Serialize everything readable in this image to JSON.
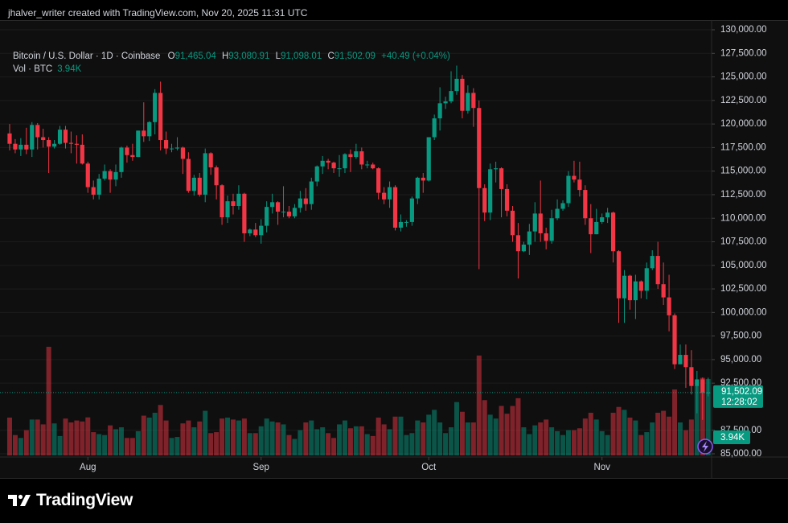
{
  "header": {
    "credit": "jhalver_writer created with TradingView.com, Nov 20, 2025 11:31 UTC"
  },
  "footer": {
    "brand": "TradingView"
  },
  "chart_data": {
    "type": "candlestick",
    "title": "Bitcoin / U.S. Dollar · 1D · Coinbase",
    "ohlc_legend": [
      {
        "prefix": "O",
        "label": "91,465.04"
      },
      {
        "prefix": "H",
        "label": "93,080.91"
      },
      {
        "prefix": "L",
        "label": "91,098.01"
      },
      {
        "prefix": "C",
        "label": "91,502.09"
      }
    ],
    "change": "+40.49 (+0.04%)",
    "volume_legend": {
      "label": "Vol · BTC",
      "value": "3.94K"
    },
    "price_tag": {
      "price": "91,502.09",
      "countdown": "12:28:02"
    },
    "volume_tag": "3.94K",
    "up_color": "#089981",
    "down_color": "#f23645",
    "grid": true,
    "ylim": [
      84830,
      130940
    ],
    "yticks": [
      {
        "value": 85000,
        "label": "85,000.00"
      },
      {
        "value": 87500,
        "label": "87,500.00"
      },
      {
        "value": 92500,
        "label": "92,500.00"
      },
      {
        "value": 95000,
        "label": "95,000.00"
      },
      {
        "value": 97500,
        "label": "97,500.00"
      },
      {
        "value": 100000,
        "label": "100,000.00"
      },
      {
        "value": 102500,
        "label": "102,500.00"
      },
      {
        "value": 105000,
        "label": "105,000.00"
      },
      {
        "value": 107500,
        "label": "107,500.00"
      },
      {
        "value": 110000,
        "label": "110,000.00"
      },
      {
        "value": 112500,
        "label": "112,500.00"
      },
      {
        "value": 115000,
        "label": "115,000.00"
      },
      {
        "value": 117500,
        "label": "117,500.00"
      },
      {
        "value": 120000,
        "label": "120,000.00"
      },
      {
        "value": 122500,
        "label": "122,500.00"
      },
      {
        "value": 125000,
        "label": "125,000.00"
      },
      {
        "value": 127500,
        "label": "127,500.00"
      },
      {
        "value": 130000,
        "label": "130,000.00"
      }
    ],
    "categories": [
      null,
      null,
      null,
      null,
      null,
      null,
      null,
      null,
      null,
      null,
      null,
      null,
      null,
      null,
      "Aug",
      null,
      null,
      null,
      null,
      null,
      null,
      null,
      null,
      null,
      null,
      null,
      null,
      null,
      null,
      null,
      null,
      null,
      null,
      null,
      null,
      null,
      null,
      null,
      null,
      null,
      null,
      null,
      null,
      null,
      null,
      "Sep",
      null,
      null,
      null,
      null,
      null,
      null,
      null,
      null,
      null,
      null,
      null,
      null,
      null,
      null,
      null,
      null,
      null,
      null,
      null,
      null,
      null,
      null,
      null,
      null,
      null,
      null,
      null,
      null,
      null,
      "Oct",
      null,
      null,
      null,
      null,
      null,
      null,
      null,
      null,
      null,
      null,
      null,
      null,
      null,
      null,
      null,
      null,
      null,
      null,
      null,
      null,
      null,
      null,
      null,
      null,
      null,
      null,
      null,
      null,
      null,
      null,
      "Nov",
      null,
      null,
      null,
      null,
      null,
      null,
      null,
      null,
      null,
      null,
      null,
      null,
      null,
      null,
      null,
      null,
      null,
      null,
      null
    ],
    "open": [
      119000,
      117900,
      117300,
      117800,
      117300,
      119900,
      118600,
      118300,
      117600,
      117900,
      119400,
      118000,
      117900,
      117800,
      115800,
      113300,
      112500,
      114200,
      115000,
      114100,
      114900,
      117500,
      116700,
      116500,
      119300,
      118700,
      120200,
      123300,
      118300,
      117400,
      117400,
      117500,
      116300,
      112900,
      114300,
      112500,
      116900,
      115400,
      113500,
      110100,
      111800,
      111300,
      112600,
      108400,
      108800,
      108200,
      109200,
      111200,
      111700,
      110700,
      110700,
      110200,
      111100,
      112100,
      111500,
      113900,
      115500,
      116100,
      115900,
      115300,
      115300,
      116800,
      116500,
      117100,
      115700,
      115700,
      115300,
      112700,
      112000,
      113300,
      109000,
      109600,
      109600,
      112100,
      114300,
      114000,
      118600,
      120600,
      122200,
      122400,
      123500,
      124800,
      121400,
      123300,
      121700,
      113200,
      110600,
      115200,
      115300,
      113100,
      110800,
      108200,
      106500,
      107200,
      108600,
      110500,
      108400,
      107600,
      110000,
      111000,
      111600,
      114500,
      114100,
      113000,
      110000,
      108300,
      109600,
      110100,
      110600,
      106500,
      101500,
      103900,
      101300,
      103300,
      102300,
      104700,
      106000,
      103000,
      101600,
      99700,
      94500,
      95500,
      94200,
      92200,
      92900,
      91465.04
    ],
    "high": [
      120000,
      118400,
      118500,
      119600,
      120200,
      120100,
      119500,
      118600,
      118300,
      119800,
      119800,
      119200,
      118800,
      118900,
      116000,
      114000,
      114700,
      115700,
      115200,
      115700,
      117600,
      117700,
      117900,
      119300,
      122300,
      120300,
      123700,
      124500,
      119200,
      117900,
      118600,
      117600,
      117000,
      114600,
      114800,
      117400,
      117000,
      115600,
      113600,
      112400,
      112600,
      113500,
      112700,
      108900,
      109500,
      109900,
      111800,
      112600,
      111800,
      113400,
      111300,
      111500,
      112900,
      113200,
      114300,
      115600,
      116600,
      116300,
      116000,
      116700,
      116900,
      117300,
      117900,
      117500,
      116100,
      115900,
      115400,
      113300,
      113900,
      113500,
      110400,
      109800,
      112300,
      114400,
      114800,
      118600,
      121000,
      123900,
      122900,
      125600,
      126200,
      125200,
      124100,
      123800,
      122500,
      113600,
      115800,
      116000,
      115400,
      113600,
      111300,
      109500,
      107500,
      109400,
      111700,
      114000,
      109000,
      110900,
      112000,
      111900,
      115000,
      116100,
      116000,
      113500,
      111500,
      111000,
      110500,
      111100,
      110700,
      106600,
      104500,
      104000,
      104000,
      103400,
      105300,
      106600,
      107500,
      105300,
      104000,
      99900,
      96600,
      96600,
      96000,
      93800,
      93100,
      93080.91
    ],
    "low": [
      117200,
      116900,
      116600,
      116800,
      116500,
      117300,
      117500,
      114800,
      117400,
      117800,
      117400,
      116900,
      115800,
      115700,
      112700,
      112000,
      112000,
      114000,
      112700,
      113400,
      114300,
      115900,
      116100,
      116500,
      118100,
      118200,
      118900,
      117200,
      116800,
      117000,
      117200,
      114700,
      112700,
      112400,
      112300,
      111700,
      114600,
      112000,
      109300,
      109500,
      110400,
      110900,
      107500,
      108100,
      108000,
      107300,
      108500,
      110500,
      109300,
      110100,
      110000,
      110000,
      110600,
      110800,
      110900,
      113400,
      114700,
      115200,
      114800,
      114400,
      114800,
      114900,
      116300,
      115200,
      115300,
      115200,
      112000,
      111500,
      111100,
      108700,
      108600,
      109100,
      109200,
      111500,
      112700,
      113900,
      118300,
      119300,
      121600,
      122200,
      123100,
      120600,
      121100,
      119700,
      104600,
      109700,
      109800,
      113800,
      110100,
      110200,
      107500,
      103600,
      106400,
      106100,
      107500,
      107500,
      106700,
      107300,
      109800,
      110800,
      111200,
      113800,
      112300,
      109300,
      106300,
      108300,
      109400,
      109500,
      105300,
      98900,
      98900,
      100300,
      99300,
      101500,
      101400,
      104500,
      102500,
      100800,
      98000,
      94000,
      94500,
      92000,
      91300,
      89300,
      88600,
      91098.01
    ],
    "close": [
      117900,
      117300,
      117800,
      117300,
      119900,
      118600,
      118300,
      117600,
      117900,
      119400,
      118000,
      117900,
      117800,
      115800,
      113300,
      112500,
      114200,
      115000,
      114100,
      114900,
      117500,
      116700,
      116500,
      119300,
      118700,
      120200,
      123300,
      118300,
      117400,
      117400,
      117500,
      116300,
      112900,
      114300,
      112500,
      116900,
      115400,
      113500,
      110100,
      111800,
      111300,
      112600,
      108400,
      108800,
      108200,
      109200,
      111200,
      111700,
      110700,
      110700,
      110200,
      111100,
      112100,
      111500,
      113900,
      115500,
      116100,
      115900,
      115300,
      115300,
      116800,
      116500,
      117100,
      115700,
      115700,
      115300,
      112700,
      112000,
      113300,
      109000,
      109600,
      109600,
      112100,
      114300,
      114000,
      118600,
      120600,
      122200,
      122400,
      123500,
      124800,
      121400,
      123300,
      121700,
      113200,
      110600,
      115200,
      115300,
      113100,
      110800,
      108200,
      106500,
      107200,
      108600,
      110500,
      108400,
      107600,
      110000,
      111000,
      111600,
      114500,
      114100,
      113000,
      110000,
      108300,
      109600,
      110100,
      110600,
      106500,
      101500,
      103900,
      101300,
      103300,
      102300,
      104700,
      106000,
      103000,
      101600,
      99700,
      94500,
      95500,
      94200,
      92200,
      92900,
      91461.6,
      91502.09
    ],
    "volume": [
      1950,
      1050,
      900,
      1300,
      1850,
      1850,
      1600,
      5600,
      1650,
      1000,
      1900,
      1700,
      1800,
      1750,
      1960,
      1200,
      1100,
      1050,
      1550,
      1350,
      1450,
      900,
      900,
      1250,
      2050,
      1950,
      2200,
      2600,
      1800,
      900,
      950,
      1650,
      1800,
      1450,
      1750,
      2300,
      1150,
      1200,
      1900,
      1950,
      1850,
      1800,
      1900,
      1150,
      1150,
      1500,
      1900,
      1750,
      1700,
      1600,
      1050,
      850,
      1300,
      1700,
      1800,
      1350,
      1450,
      1150,
      900,
      1600,
      1800,
      1400,
      1500,
      1500,
      1100,
      1000,
      1950,
      1600,
      1350,
      2000,
      2000,
      1050,
      1150,
      1800,
      1700,
      2100,
      2350,
      1700,
      1150,
      1450,
      2750,
      2250,
      1700,
      1700,
      5150,
      2850,
      2100,
      1900,
      2550,
      2150,
      2550,
      2950,
      1450,
      1100,
      1550,
      1700,
      1850,
      1450,
      1250,
      1050,
      1300,
      1300,
      1400,
      1900,
      2200,
      1850,
      1250,
      1050,
      2200,
      2500,
      2350,
      1950,
      1800,
      1050,
      1200,
      1700,
      2200,
      2300,
      2000,
      3400,
      1700,
      1300,
      1850,
      3600,
      4000,
      3940
    ]
  }
}
